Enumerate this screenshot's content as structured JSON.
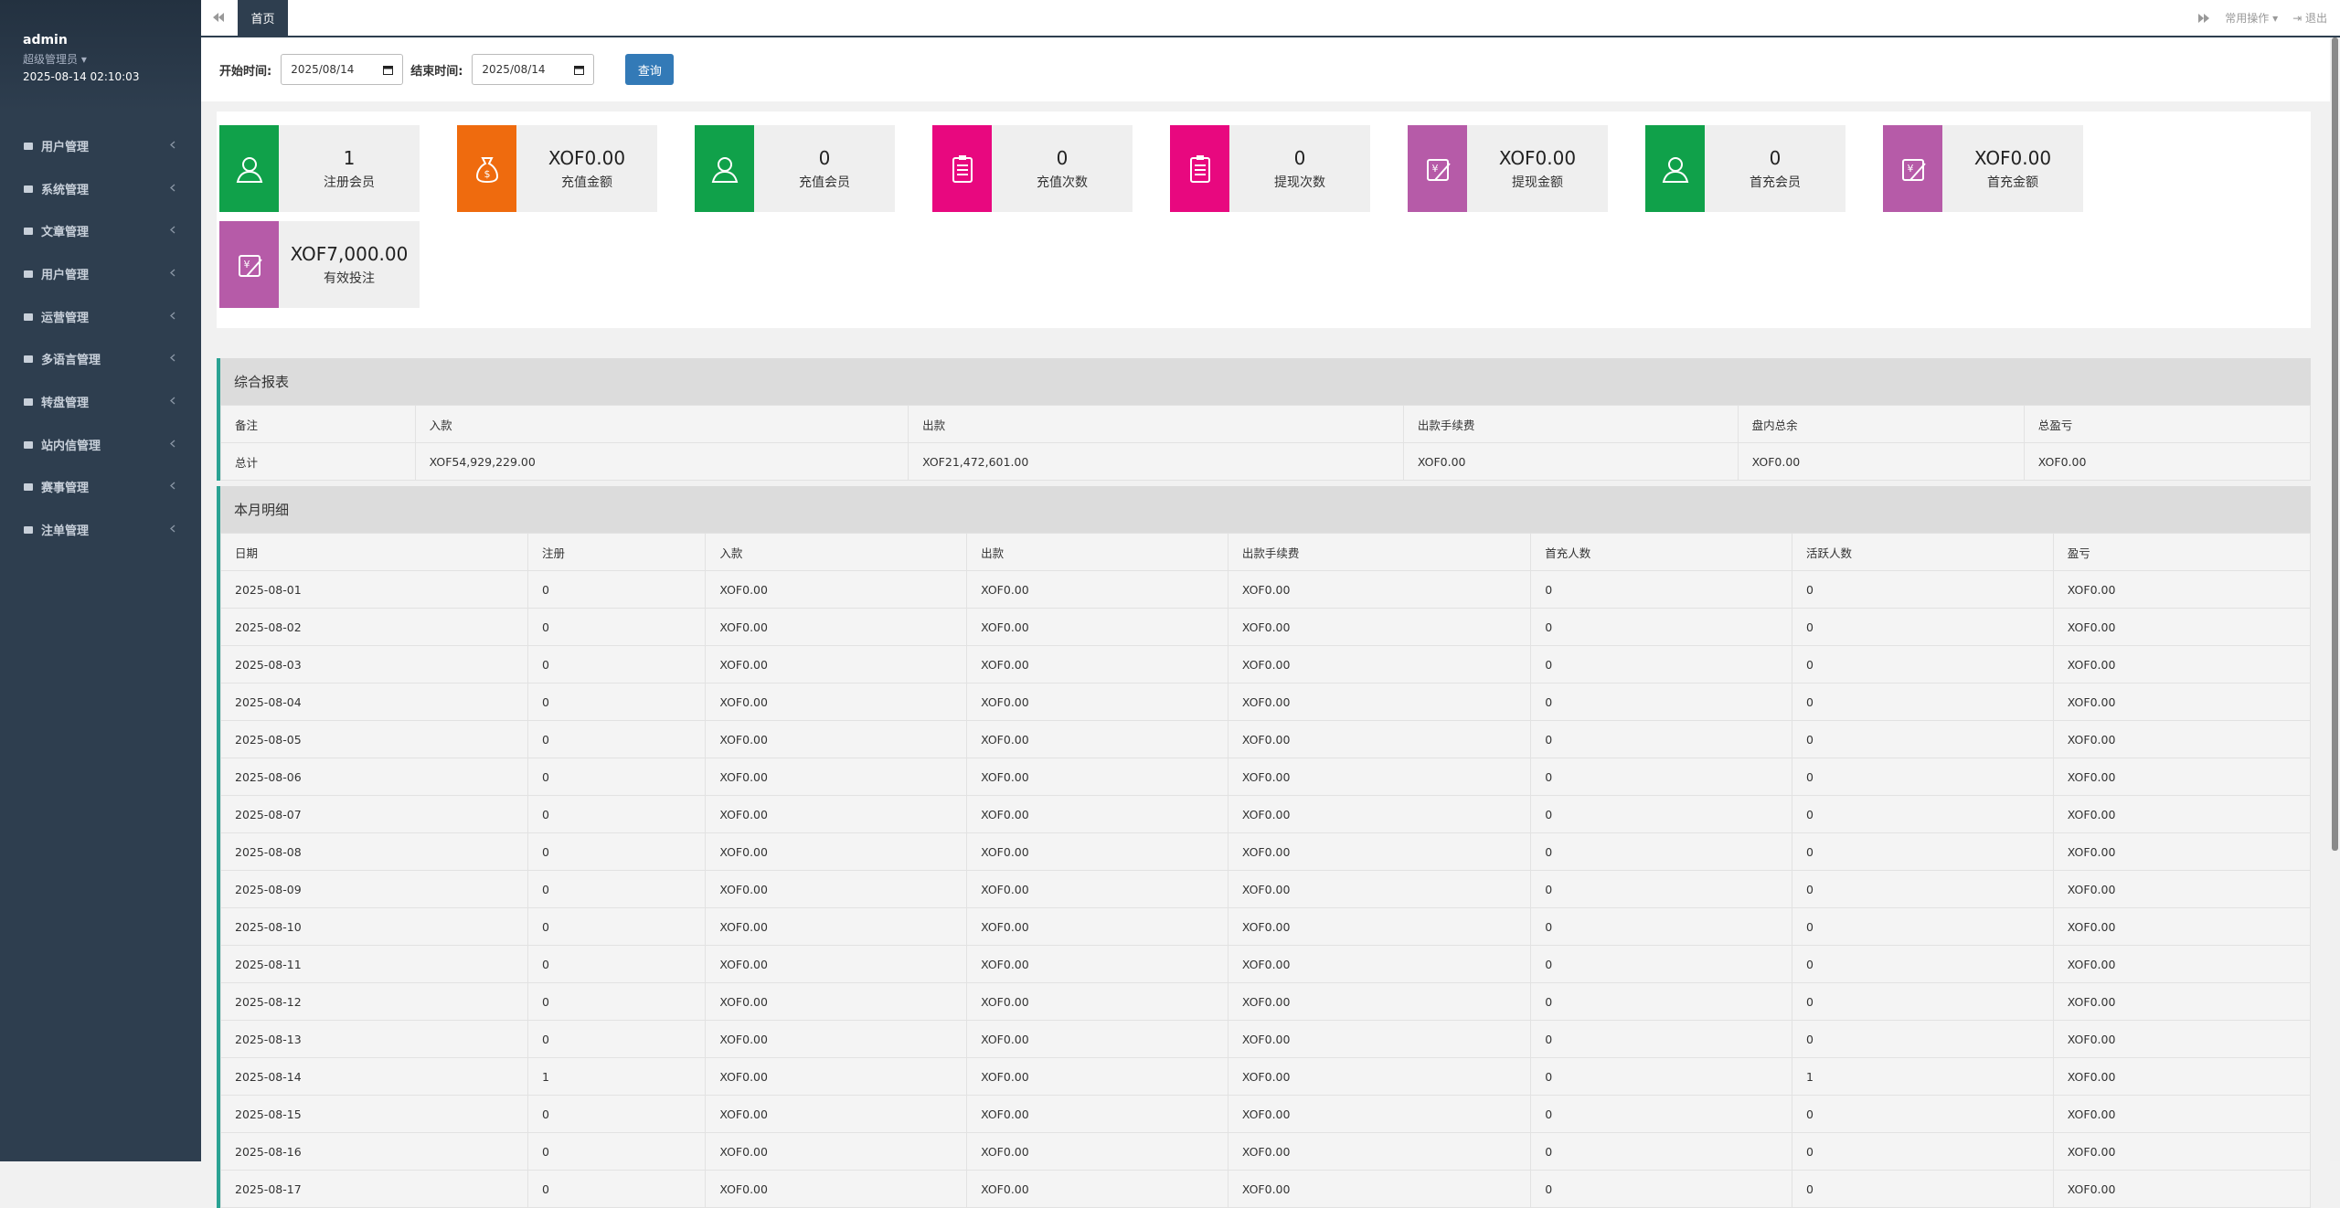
{
  "sidebar": {
    "user": "admin",
    "role": "超级管理员",
    "datetime": "2025-08-14 02:10:03",
    "menu": [
      "用户管理",
      "系统管理",
      "文章管理",
      "用户管理",
      "运营管理",
      "多语言管理",
      "转盘管理",
      "站内信管理",
      "赛事管理",
      "注单管理"
    ]
  },
  "topbar": {
    "tab": "首页",
    "actions": "常用操作",
    "logout": "退出"
  },
  "filter": {
    "start_label": "开始时间:",
    "start_value": "2025/08/14",
    "end_label": "结束时间:",
    "end_value": "2025/08/14",
    "button": "查询"
  },
  "stats": [
    {
      "value": "1",
      "label": "注册会员",
      "color": "#10a14a"
    },
    {
      "value": "XOF0.00",
      "label": "充值金额",
      "color": "#ef6b0e"
    },
    {
      "value": "0",
      "label": "充值会员",
      "color": "#10a14a"
    },
    {
      "value": "0",
      "label": "充值次数",
      "color": "#e8087f"
    },
    {
      "value": "0",
      "label": "提现次数",
      "color": "#e8087f"
    },
    {
      "value": "XOF0.00",
      "label": "提现金额",
      "color": "#b65ba8"
    },
    {
      "value": "0",
      "label": "首充会员",
      "color": "#10a14a"
    },
    {
      "value": "XOF0.00",
      "label": "首充金额",
      "color": "#b65ba8"
    },
    {
      "value": "XOF7,000.00",
      "label": "有效投注",
      "color": "#b65ba8"
    }
  ],
  "summary": {
    "title": "综合报表",
    "headers": [
      "备注",
      "入款",
      "出款",
      "出款手续费",
      "盘内总余",
      "总盈亏"
    ],
    "rows": [
      [
        "总计",
        "XOF54,929,229.00",
        "XOF21,472,601.00",
        "XOF0.00",
        "XOF0.00",
        "XOF0.00"
      ]
    ]
  },
  "monthly": {
    "title": "本月明细",
    "headers": [
      "日期",
      "注册",
      "入款",
      "出款",
      "出款手续费",
      "首充人数",
      "活跃人数",
      "盈亏"
    ],
    "rows": [
      [
        "2025-08-01",
        "0",
        "XOF0.00",
        "XOF0.00",
        "XOF0.00",
        "0",
        "0",
        "XOF0.00"
      ],
      [
        "2025-08-02",
        "0",
        "XOF0.00",
        "XOF0.00",
        "XOF0.00",
        "0",
        "0",
        "XOF0.00"
      ],
      [
        "2025-08-03",
        "0",
        "XOF0.00",
        "XOF0.00",
        "XOF0.00",
        "0",
        "0",
        "XOF0.00"
      ],
      [
        "2025-08-04",
        "0",
        "XOF0.00",
        "XOF0.00",
        "XOF0.00",
        "0",
        "0",
        "XOF0.00"
      ],
      [
        "2025-08-05",
        "0",
        "XOF0.00",
        "XOF0.00",
        "XOF0.00",
        "0",
        "0",
        "XOF0.00"
      ],
      [
        "2025-08-06",
        "0",
        "XOF0.00",
        "XOF0.00",
        "XOF0.00",
        "0",
        "0",
        "XOF0.00"
      ],
      [
        "2025-08-07",
        "0",
        "XOF0.00",
        "XOF0.00",
        "XOF0.00",
        "0",
        "0",
        "XOF0.00"
      ],
      [
        "2025-08-08",
        "0",
        "XOF0.00",
        "XOF0.00",
        "XOF0.00",
        "0",
        "0",
        "XOF0.00"
      ],
      [
        "2025-08-09",
        "0",
        "XOF0.00",
        "XOF0.00",
        "XOF0.00",
        "0",
        "0",
        "XOF0.00"
      ],
      [
        "2025-08-10",
        "0",
        "XOF0.00",
        "XOF0.00",
        "XOF0.00",
        "0",
        "0",
        "XOF0.00"
      ],
      [
        "2025-08-11",
        "0",
        "XOF0.00",
        "XOF0.00",
        "XOF0.00",
        "0",
        "0",
        "XOF0.00"
      ],
      [
        "2025-08-12",
        "0",
        "XOF0.00",
        "XOF0.00",
        "XOF0.00",
        "0",
        "0",
        "XOF0.00"
      ],
      [
        "2025-08-13",
        "0",
        "XOF0.00",
        "XOF0.00",
        "XOF0.00",
        "0",
        "0",
        "XOF0.00"
      ],
      [
        "2025-08-14",
        "1",
        "XOF0.00",
        "XOF0.00",
        "XOF0.00",
        "0",
        "1",
        "XOF0.00"
      ],
      [
        "2025-08-15",
        "0",
        "XOF0.00",
        "XOF0.00",
        "XOF0.00",
        "0",
        "0",
        "XOF0.00"
      ],
      [
        "2025-08-16",
        "0",
        "XOF0.00",
        "XOF0.00",
        "XOF0.00",
        "0",
        "0",
        "XOF0.00"
      ],
      [
        "2025-08-17",
        "0",
        "XOF0.00",
        "XOF0.00",
        "XOF0.00",
        "0",
        "0",
        "XOF0.00"
      ]
    ]
  }
}
